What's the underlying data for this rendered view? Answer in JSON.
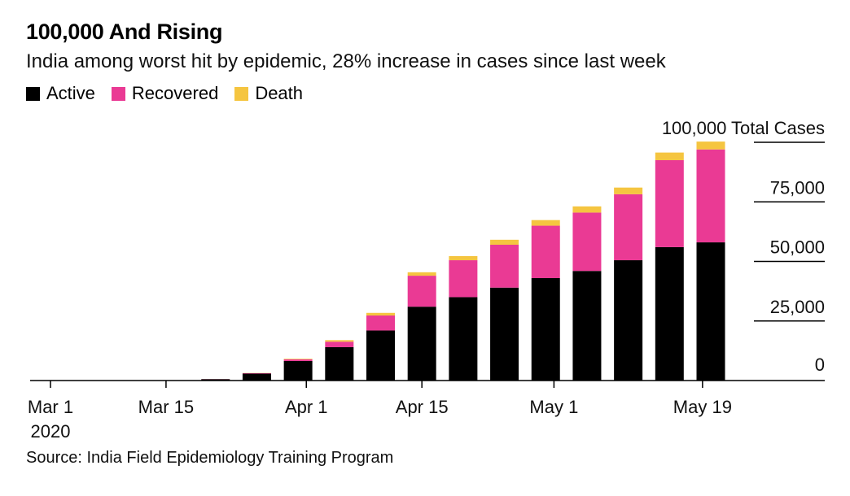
{
  "colors": {
    "active": "#000000",
    "recovered": "#ea3a94",
    "death": "#f5c540",
    "gridline": "#000000"
  },
  "chart_data": {
    "type": "bar",
    "stacked": true,
    "title": "100,000 And Rising",
    "subtitle": "India among worst hit by epidemic, 28% increase in cases since last week",
    "source": "Source: India Field Epidemiology Training Program",
    "legend": [
      "Active",
      "Recovered",
      "Death"
    ],
    "ylim": [
      0,
      100000
    ],
    "yticks": [
      {
        "value": 0,
        "label": "0"
      },
      {
        "value": 25000,
        "label": "25,000"
      },
      {
        "value": 50000,
        "label": "50,000"
      },
      {
        "value": 75000,
        "label": "75,000"
      },
      {
        "value": 100000,
        "label": "100,000"
      }
    ],
    "y_top_label_suffix": "Total Cases",
    "xlim_days": [
      0,
      80
    ],
    "xticks": [
      {
        "day": 0,
        "label": "Mar 1",
        "sublabel": "2020"
      },
      {
        "day": 14,
        "label": "Mar 15"
      },
      {
        "day": 31,
        "label": "Apr 1"
      },
      {
        "day": 45,
        "label": "Apr 15"
      },
      {
        "day": 61,
        "label": "May 1"
      },
      {
        "day": 79,
        "label": "May 19"
      }
    ],
    "bars": [
      {
        "day": 0,
        "active": 3,
        "recovered": 0,
        "death": 0
      },
      {
        "day": 5,
        "active": 30,
        "recovered": 0,
        "death": 0
      },
      {
        "day": 10,
        "active": 60,
        "recovered": 4,
        "death": 1
      },
      {
        "day": 15,
        "active": 140,
        "recovered": 20,
        "death": 3
      },
      {
        "day": 20,
        "active": 580,
        "recovered": 44,
        "death": 11
      },
      {
        "day": 25,
        "active": 2900,
        "recovered": 200,
        "death": 80
      },
      {
        "day": 30,
        "active": 8200,
        "recovered": 700,
        "death": 250
      },
      {
        "day": 35,
        "active": 14000,
        "recovered": 2300,
        "death": 650
      },
      {
        "day": 40,
        "active": 21000,
        "recovered": 6300,
        "death": 1100
      },
      {
        "day": 45,
        "active": 31000,
        "recovered": 13000,
        "death": 1450
      },
      {
        "day": 50,
        "active": 35000,
        "recovered": 15500,
        "death": 1750
      },
      {
        "day": 55,
        "active": 39000,
        "recovered": 18000,
        "death": 2100
      },
      {
        "day": 60,
        "active": 43000,
        "recovered": 22000,
        "death": 2350
      },
      {
        "day": 65,
        "active": 46000,
        "recovered": 24500,
        "death": 2600
      },
      {
        "day": 70,
        "active": 50500,
        "recovered": 27700,
        "death": 2800
      },
      {
        "day": 75,
        "active": 56000,
        "recovered": 36500,
        "death": 3200
      },
      {
        "day": 80,
        "active": 58000,
        "recovered": 39000,
        "death": 3300
      }
    ]
  }
}
